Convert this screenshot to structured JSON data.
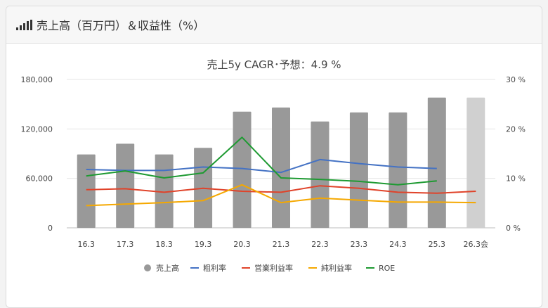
{
  "header": {
    "title": "売上高（百万円）＆収益性（%）",
    "icon": "signal-bars-icon"
  },
  "chart_data": {
    "type": "bar",
    "title": "売上5y CAGR･予想：4.9 %",
    "categories": [
      "16.3",
      "17.3",
      "18.3",
      "19.3",
      "20.3",
      "21.3",
      "22.3",
      "23.3",
      "24.3",
      "25.3",
      "26.3会"
    ],
    "y_left": {
      "range": [
        0,
        180000
      ],
      "ticks": [
        "0",
        "60,000",
        "120,000",
        "180,000"
      ],
      "tick_values": [
        0,
        60000,
        120000,
        180000
      ]
    },
    "y_right": {
      "range": [
        0,
        30
      ],
      "ticks": [
        "0 %",
        "10 %",
        "20 %",
        "30 %"
      ],
      "tick_values": [
        0,
        10,
        20,
        30
      ]
    },
    "bars": {
      "name": "売上高",
      "values": [
        89000,
        102000,
        89000,
        97000,
        141000,
        146000,
        129000,
        140000,
        140000,
        158000,
        158000
      ],
      "color": "#999999",
      "forecast_color": "#d0d0d0"
    },
    "series": [
      {
        "name": "粗利率",
        "axis": "right",
        "color": "#4472c4",
        "values": [
          11.8,
          11.6,
          11.6,
          12.3,
          12.0,
          11.2,
          13.8,
          13.0,
          12.3,
          12.0,
          null
        ]
      },
      {
        "name": "営業利益率",
        "axis": "right",
        "color": "#e0432a",
        "values": [
          7.7,
          7.9,
          7.2,
          8.0,
          7.4,
          7.2,
          8.5,
          8.0,
          7.2,
          7.0,
          7.4
        ]
      },
      {
        "name": "純利益率",
        "axis": "right",
        "color": "#f5a800",
        "values": [
          4.5,
          4.8,
          5.1,
          5.5,
          8.7,
          5.1,
          6.0,
          5.6,
          5.2,
          5.2,
          5.1
        ]
      },
      {
        "name": "ROE",
        "axis": "right",
        "color": "#1e9a32",
        "values": [
          10.5,
          11.5,
          10.1,
          11.1,
          18.3,
          10.1,
          9.8,
          9.4,
          8.7,
          9.5,
          null
        ]
      }
    ],
    "legend": [
      "売上高",
      "粗利率",
      "営業利益率",
      "純利益率",
      "ROE"
    ],
    "legend_position": "bottom",
    "grid": true
  }
}
